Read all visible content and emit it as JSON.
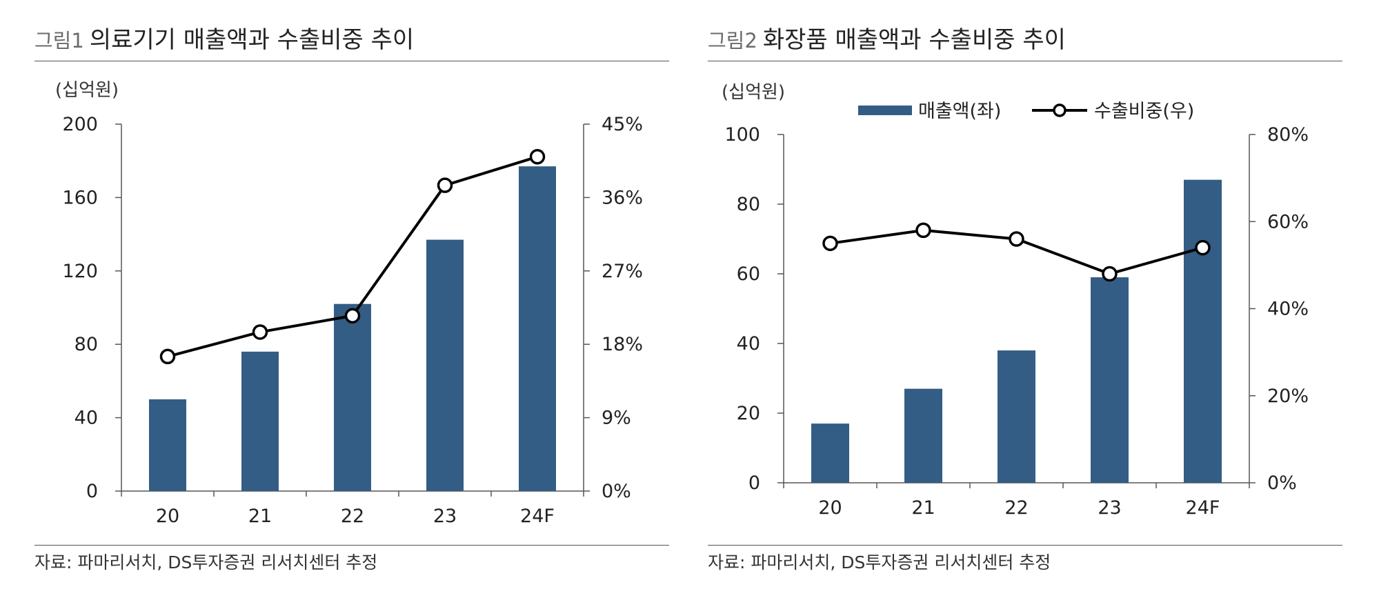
{
  "colors": {
    "bar": "#335d84",
    "line": "#000000",
    "axis": "#555555"
  },
  "figures": [
    {
      "label": "그림1",
      "title": "의료기기 매출액과 수출비중 추이",
      "unit": "(십억원)",
      "source": "자료: 파마리서치, DS투자증권 리서치센터 추정"
    },
    {
      "label": "그림2",
      "title": "화장품 매출액과 수출비중 추이",
      "unit": "(십억원)",
      "source": "자료: 파마리서치, DS투자증권 리서치센터 추정"
    }
  ],
  "chart_data": [
    {
      "type": "bar",
      "title": "의료기기 매출액과 수출비중 추이",
      "categories": [
        "20",
        "21",
        "22",
        "23",
        "24F"
      ],
      "series": [
        {
          "name": "매출액",
          "axis": "left",
          "type": "bar",
          "values": [
            50,
            76,
            102,
            137,
            177
          ]
        },
        {
          "name": "수출비중",
          "axis": "right",
          "type": "line",
          "values": [
            16.5,
            19.5,
            21.5,
            37.5,
            41.0
          ]
        }
      ],
      "ylim_left": [
        0,
        200
      ],
      "yticks_left": [
        "0",
        "40",
        "80",
        "120",
        "160",
        "200"
      ],
      "ylim_right": [
        0,
        45
      ],
      "yticks_right": [
        "0%",
        "9%",
        "18%",
        "27%",
        "36%",
        "45%"
      ],
      "ylabel": "(십억원)",
      "legend": null
    },
    {
      "type": "bar",
      "title": "화장품 매출액과 수출비중 추이",
      "categories": [
        "20",
        "21",
        "22",
        "23",
        "24F"
      ],
      "series": [
        {
          "name": "매출액",
          "axis": "left",
          "type": "bar",
          "values": [
            17,
            27,
            38,
            59,
            87
          ]
        },
        {
          "name": "수출비중",
          "axis": "right",
          "type": "line",
          "values": [
            55,
            58,
            56,
            48,
            54
          ]
        }
      ],
      "ylim_left": [
        0,
        100
      ],
      "yticks_left": [
        "0",
        "20",
        "40",
        "60",
        "80",
        "100"
      ],
      "ylim_right": [
        0,
        80
      ],
      "yticks_right": [
        "0%",
        "20%",
        "40%",
        "60%",
        "80%"
      ],
      "ylabel": "(십억원)",
      "legend": {
        "position": "top",
        "entries": [
          "매출액(좌)",
          "수출비중(우)"
        ]
      }
    }
  ]
}
